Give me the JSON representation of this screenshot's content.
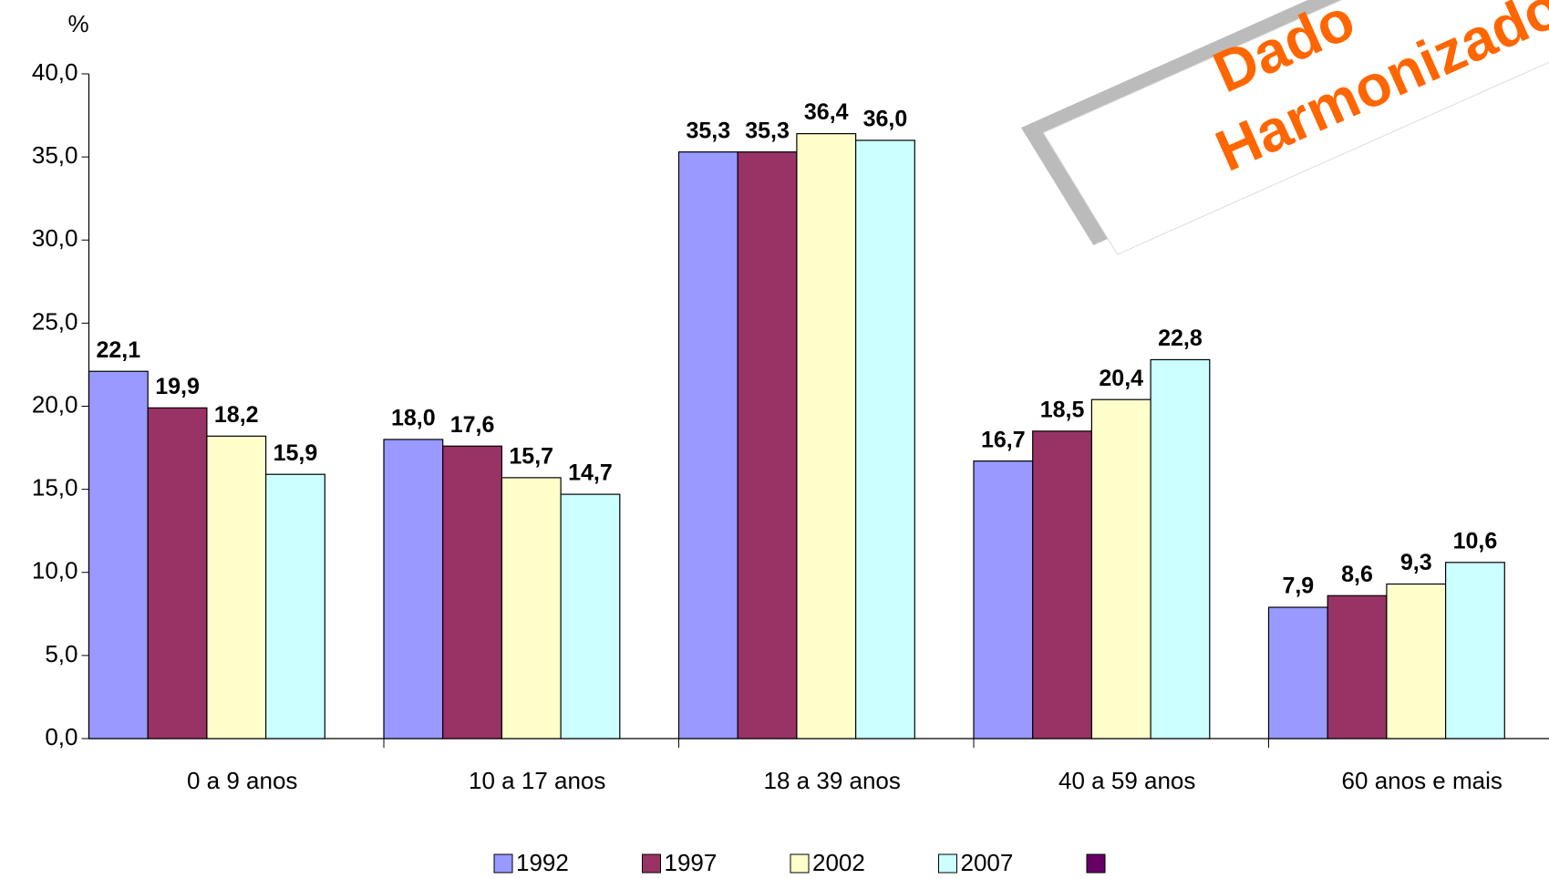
{
  "chart_data": {
    "type": "bar",
    "ylabel": "%",
    "annotations": [
      "Dado",
      "Harmonizado"
    ],
    "categories": [
      "0 a 9 anos",
      "10 a 17 anos",
      "18 a 39 anos",
      "40 a 59 anos",
      "60 anos e mais"
    ],
    "series": [
      {
        "name": "1992",
        "color": "#9999ff",
        "values": [
          22.1,
          18.0,
          35.3,
          16.7,
          7.9
        ],
        "value_labels": [
          "22,1",
          "18,0",
          "35,3",
          "16,7",
          "7,9"
        ]
      },
      {
        "name": "1997",
        "color": "#993366",
        "values": [
          19.9,
          17.6,
          35.3,
          18.5,
          8.6
        ],
        "value_labels": [
          "19,9",
          "17,6",
          "35,3",
          "18,5",
          "8,6"
        ]
      },
      {
        "name": "2002",
        "color": "#ffffcc",
        "values": [
          18.2,
          15.7,
          36.4,
          20.4,
          9.3
        ],
        "value_labels": [
          "18,2",
          "15,7",
          "36,4",
          "20,4",
          "9,3"
        ]
      },
      {
        "name": "2007",
        "color": "#ccffff",
        "values": [
          15.9,
          14.7,
          36.0,
          22.8,
          10.6
        ],
        "value_labels": [
          "15,9",
          "14,7",
          "36,0",
          "22,8",
          "10,6"
        ]
      }
    ],
    "ylim": [
      0,
      40
    ],
    "yticks": [
      {
        "value": 0,
        "label": "0,0"
      },
      {
        "value": 5,
        "label": "5,0"
      },
      {
        "value": 10,
        "label": "10,0"
      },
      {
        "value": 15,
        "label": "15,0"
      },
      {
        "value": 20,
        "label": "20,0"
      },
      {
        "value": 25,
        "label": "25,0"
      },
      {
        "value": 30,
        "label": "30,0"
      },
      {
        "value": 35,
        "label": "35,0"
      },
      {
        "value": 40,
        "label": "40,0"
      }
    ]
  }
}
